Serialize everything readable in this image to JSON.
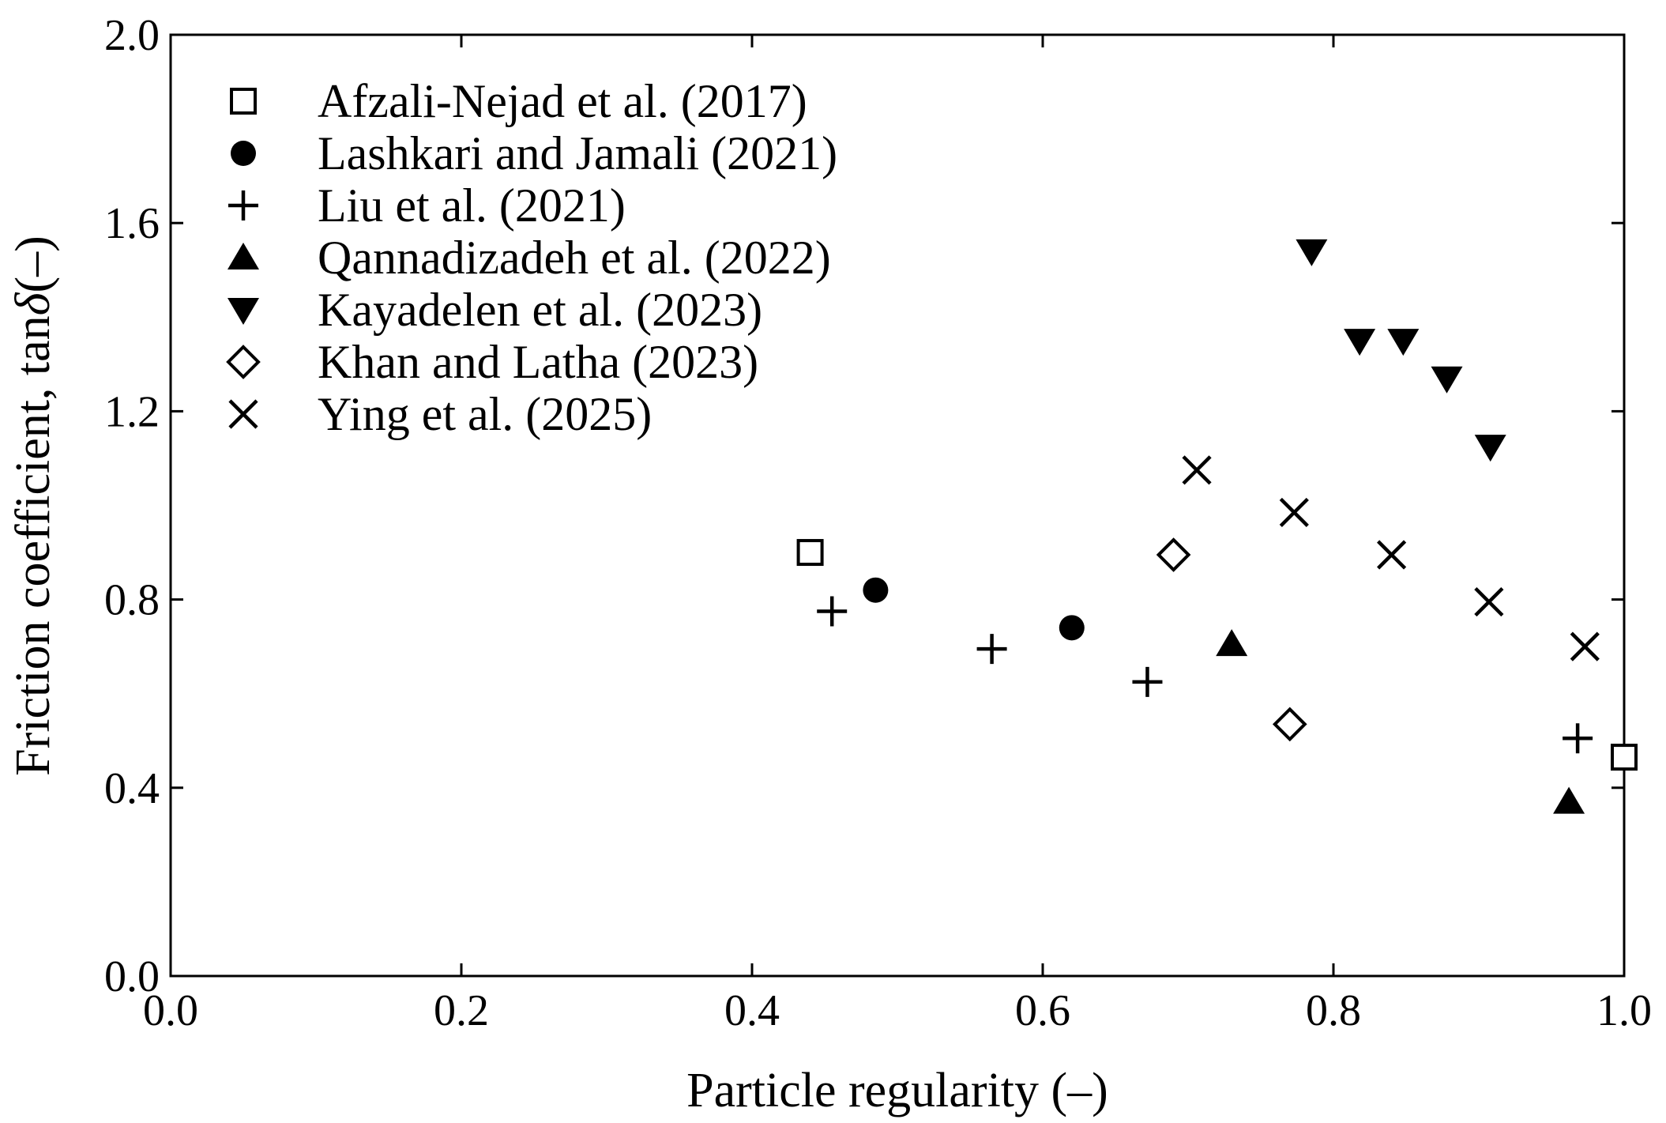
{
  "chart_data": {
    "type": "scatter",
    "title": "",
    "xlabel": "Particle regularity (–)",
    "ylabel": {
      "prefix": "Friction coefficient,  tan",
      "symbol": "δ",
      "suffix": "(–)"
    },
    "xlim": [
      0.0,
      1.0
    ],
    "ylim": [
      0.0,
      2.0
    ],
    "xticks": [
      "0.0",
      "0.2",
      "0.4",
      "0.6",
      "0.8",
      "1.0"
    ],
    "yticks": [
      "0.0",
      "0.4",
      "0.8",
      "1.2",
      "1.6",
      "2.0"
    ],
    "grid": false,
    "legend_position": "top-left",
    "series": [
      {
        "name": "Afzali-Nejad et al. (2017)",
        "marker": "square-open",
        "points": [
          [
            0.44,
            0.9
          ],
          [
            1.0,
            0.465
          ]
        ]
      },
      {
        "name": "Lashkari and Jamali (2021)",
        "marker": "circle-filled",
        "points": [
          [
            0.485,
            0.82
          ],
          [
            0.62,
            0.74
          ]
        ]
      },
      {
        "name": "Liu et al. (2021)",
        "marker": "plus",
        "points": [
          [
            0.455,
            0.775
          ],
          [
            0.565,
            0.695
          ],
          [
            0.672,
            0.625
          ],
          [
            0.968,
            0.505
          ]
        ]
      },
      {
        "name": "Qannadizadeh et al. (2022)",
        "marker": "triangle-up-filled",
        "points": [
          [
            0.73,
            0.705
          ],
          [
            0.962,
            0.37
          ]
        ]
      },
      {
        "name": "Kayadelen et al. (2023)",
        "marker": "triangle-down-filled",
        "points": [
          [
            0.785,
            1.54
          ],
          [
            0.818,
            1.35
          ],
          [
            0.848,
            1.35
          ],
          [
            0.878,
            1.27
          ],
          [
            0.908,
            1.125
          ]
        ]
      },
      {
        "name": "Khan and Latha (2023)",
        "marker": "diamond-open",
        "points": [
          [
            0.69,
            0.895
          ],
          [
            0.77,
            0.535
          ]
        ]
      },
      {
        "name": "Ying et al. (2025)",
        "marker": "cross",
        "points": [
          [
            0.706,
            1.075
          ],
          [
            0.773,
            0.985
          ],
          [
            0.84,
            0.895
          ],
          [
            0.907,
            0.795
          ],
          [
            0.973,
            0.7
          ]
        ]
      }
    ]
  }
}
